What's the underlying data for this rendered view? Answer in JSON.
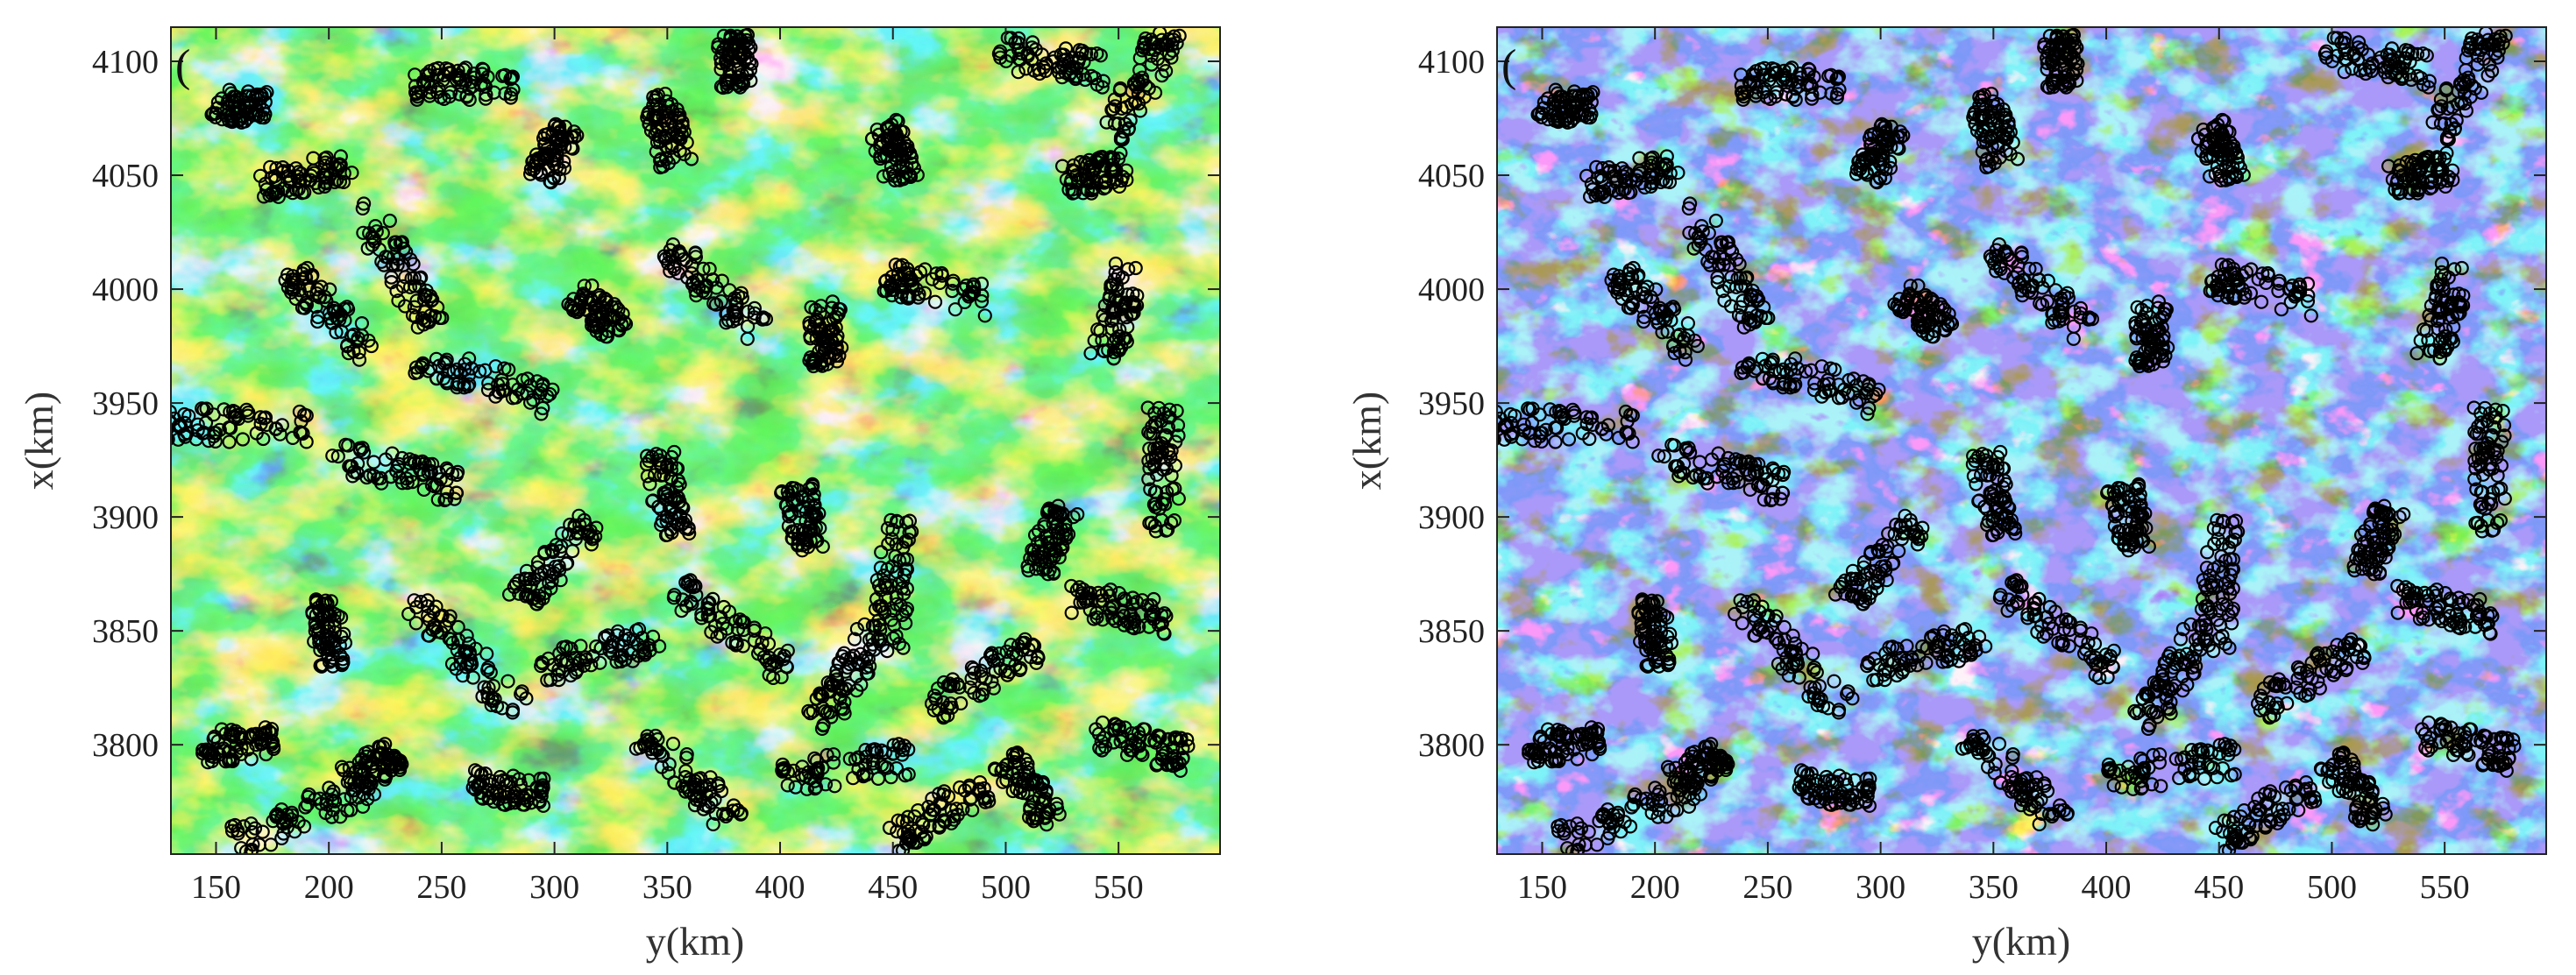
{
  "figure": {
    "panels": [
      {
        "id": "left",
        "panel_letter": "(",
        "xlabel": "y(km)",
        "ylabel": "x(km)"
      },
      {
        "id": "right",
        "panel_letter": "(",
        "xlabel": "y(km)",
        "ylabel": "x(km)"
      }
    ]
  },
  "chart_data": [
    {
      "type": "heatmap",
      "title": "",
      "xlabel": "y(km)",
      "ylabel": "x(km)",
      "xlim": [
        130,
        595
      ],
      "ylim": [
        3752,
        4115
      ],
      "x_ticks": [
        150,
        200,
        250,
        300,
        350,
        400,
        450,
        500,
        550
      ],
      "y_ticks": [
        3800,
        3850,
        3900,
        3950,
        4000,
        4050,
        4100
      ],
      "grid": false,
      "colormap": [
        "#5a4fe6",
        "#2f6cf0",
        "#1ec6e8",
        "#35d84a",
        "#c8ef2a",
        "#ffd21e",
        "#ff3b1e"
      ],
      "background_color": "#4466f0",
      "overlay": {
        "type": "scatter",
        "marker": "open circle",
        "color": "#000000",
        "description_of_clusters": [
          {
            "y": 160,
            "x": 4080
          },
          {
            "y": 190,
            "x": 4050
          },
          {
            "y": 230,
            "x": 4010
          },
          {
            "y": 260,
            "x": 4090
          },
          {
            "y": 300,
            "x": 4060
          },
          {
            "y": 350,
            "x": 4070
          },
          {
            "y": 380,
            "x": 4100
          },
          {
            "y": 450,
            "x": 4060
          },
          {
            "y": 520,
            "x": 4100
          },
          {
            "y": 560,
            "x": 4090
          },
          {
            "y": 540,
            "x": 4050
          },
          {
            "y": 550,
            "x": 3990
          },
          {
            "y": 470,
            "x": 4000
          },
          {
            "y": 420,
            "x": 3980
          },
          {
            "y": 370,
            "x": 4000
          },
          {
            "y": 320,
            "x": 3990
          },
          {
            "y": 270,
            "x": 3960
          },
          {
            "y": 200,
            "x": 3990
          },
          {
            "y": 160,
            "x": 3940
          },
          {
            "y": 230,
            "x": 3920
          },
          {
            "y": 300,
            "x": 3880
          },
          {
            "y": 350,
            "x": 3910
          },
          {
            "y": 410,
            "x": 3900
          },
          {
            "y": 450,
            "x": 3870
          },
          {
            "y": 520,
            "x": 3890
          },
          {
            "y": 570,
            "x": 3920
          },
          {
            "y": 550,
            "x": 3860
          },
          {
            "y": 490,
            "x": 3830
          },
          {
            "y": 430,
            "x": 3830
          },
          {
            "y": 380,
            "x": 3850
          },
          {
            "y": 320,
            "x": 3840
          },
          {
            "y": 260,
            "x": 3840
          },
          {
            "y": 200,
            "x": 3850
          },
          {
            "y": 160,
            "x": 3800
          },
          {
            "y": 220,
            "x": 3790
          },
          {
            "y": 280,
            "x": 3780
          },
          {
            "y": 360,
            "x": 3785
          },
          {
            "y": 430,
            "x": 3790
          },
          {
            "y": 510,
            "x": 3780
          },
          {
            "y": 560,
            "x": 3800
          },
          {
            "y": 190,
            "x": 3770
          },
          {
            "y": 470,
            "x": 3770
          }
        ]
      }
    },
    {
      "type": "heatmap",
      "title": "",
      "xlabel": "y(km)",
      "ylabel": "x(km)",
      "xlim": [
        130,
        595
      ],
      "ylim": [
        3752,
        4115
      ],
      "x_ticks": [
        150,
        200,
        250,
        300,
        350,
        400,
        450,
        500,
        550
      ],
      "y_ticks": [
        3800,
        3850,
        3900,
        3950,
        4000,
        4050,
        4100
      ],
      "grid": false,
      "colormap": [
        "#6652f0",
        "#3a7cf5",
        "#21d6ee",
        "#3ee24c",
        "#f2ea1e",
        "#ff2a12"
      ],
      "background_color": "#6652f0",
      "overlay": {
        "type": "scatter",
        "marker": "open circle",
        "color": "#000000",
        "description_of_clusters": [
          {
            "y": 160,
            "x": 4080
          },
          {
            "y": 190,
            "x": 4050
          },
          {
            "y": 230,
            "x": 4010
          },
          {
            "y": 260,
            "x": 4090
          },
          {
            "y": 300,
            "x": 4060
          },
          {
            "y": 350,
            "x": 4070
          },
          {
            "y": 380,
            "x": 4100
          },
          {
            "y": 450,
            "x": 4060
          },
          {
            "y": 520,
            "x": 4100
          },
          {
            "y": 560,
            "x": 4090
          },
          {
            "y": 540,
            "x": 4050
          },
          {
            "y": 550,
            "x": 3990
          },
          {
            "y": 470,
            "x": 4000
          },
          {
            "y": 420,
            "x": 3980
          },
          {
            "y": 370,
            "x": 4000
          },
          {
            "y": 320,
            "x": 3990
          },
          {
            "y": 270,
            "x": 3960
          },
          {
            "y": 200,
            "x": 3990
          },
          {
            "y": 160,
            "x": 3940
          },
          {
            "y": 230,
            "x": 3920
          },
          {
            "y": 300,
            "x": 3880
          },
          {
            "y": 350,
            "x": 3910
          },
          {
            "y": 410,
            "x": 3900
          },
          {
            "y": 450,
            "x": 3870
          },
          {
            "y": 520,
            "x": 3890
          },
          {
            "y": 570,
            "x": 3920
          },
          {
            "y": 550,
            "x": 3860
          },
          {
            "y": 490,
            "x": 3830
          },
          {
            "y": 430,
            "x": 3830
          },
          {
            "y": 380,
            "x": 3850
          },
          {
            "y": 320,
            "x": 3840
          },
          {
            "y": 260,
            "x": 3840
          },
          {
            "y": 200,
            "x": 3850
          },
          {
            "y": 160,
            "x": 3800
          },
          {
            "y": 220,
            "x": 3790
          },
          {
            "y": 280,
            "x": 3780
          },
          {
            "y": 360,
            "x": 3785
          },
          {
            "y": 430,
            "x": 3790
          },
          {
            "y": 510,
            "x": 3780
          },
          {
            "y": 560,
            "x": 3800
          },
          {
            "y": 190,
            "x": 3770
          },
          {
            "y": 470,
            "x": 3770
          }
        ]
      }
    }
  ]
}
